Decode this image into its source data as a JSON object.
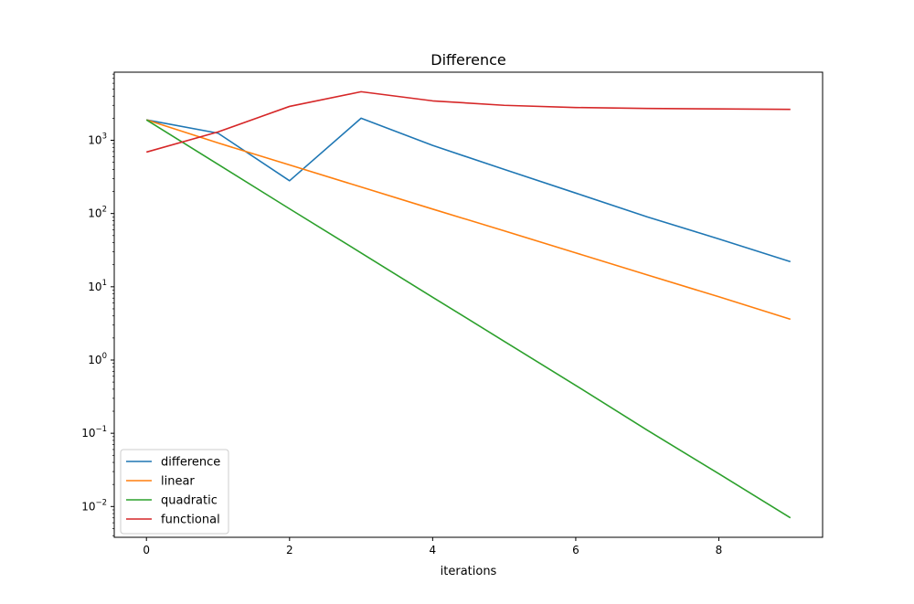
{
  "chart_data": {
    "type": "line",
    "title": "Difference",
    "xlabel": "iterations",
    "ylabel": "",
    "yscale": "log",
    "xlim": [
      -0.45,
      9.45
    ],
    "ylim": [
      0.0038,
      8500
    ],
    "grid": false,
    "legend_position": "lower-left",
    "x": [
      0,
      1,
      2,
      3,
      4,
      5,
      6,
      7,
      8,
      9
    ],
    "x_ticks": [
      0,
      2,
      4,
      6,
      8
    ],
    "x_tick_labels": [
      "0",
      "2",
      "4",
      "6",
      "8"
    ],
    "y_tick_exponents": [
      -2,
      -1,
      0,
      1,
      2,
      3
    ],
    "series": [
      {
        "name": "difference",
        "color": "#1f77b4",
        "values": [
          1900,
          1250,
          280,
          2000,
          850,
          400,
          190,
          90,
          45,
          22
        ]
      },
      {
        "name": "linear",
        "color": "#ff7f0e",
        "values": [
          1900,
          920,
          460,
          230,
          115,
          58,
          29,
          14.5,
          7.3,
          3.6
        ]
      },
      {
        "name": "quadratic",
        "color": "#2ca02c",
        "values": [
          1900,
          470,
          116,
          29,
          7.2,
          1.8,
          0.45,
          0.11,
          0.028,
          0.007
        ]
      },
      {
        "name": "functional",
        "color": "#d62728",
        "values": [
          690,
          1300,
          2900,
          4600,
          3450,
          3000,
          2800,
          2720,
          2680,
          2640
        ]
      }
    ]
  }
}
